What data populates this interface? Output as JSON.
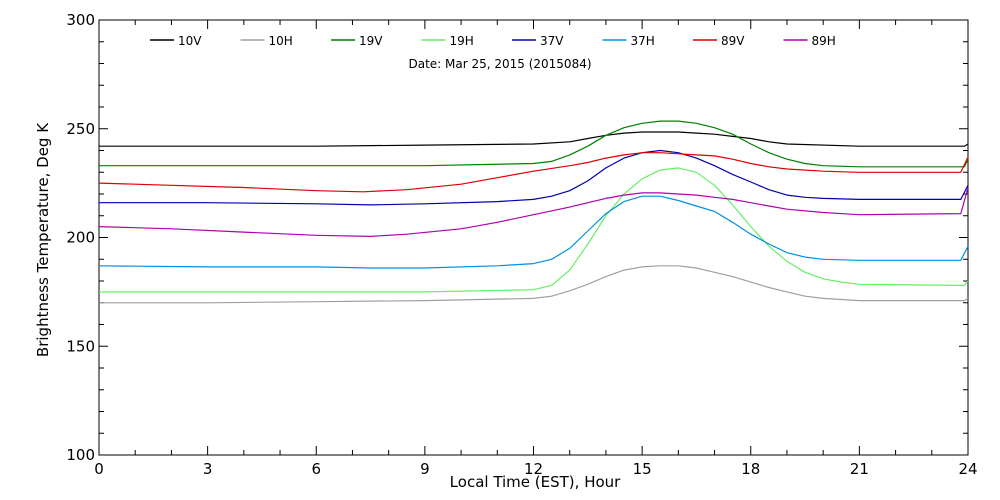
{
  "chart_data": {
    "type": "line",
    "title": "Date: Mar 25, 2015 (2015084)",
    "xlabel": "Local Time (EST), Hour",
    "ylabel": "Brightness Temperature, Deg K",
    "xlim": [
      0,
      24
    ],
    "ylim": [
      100,
      300
    ],
    "xticks": [
      0,
      3,
      6,
      9,
      12,
      15,
      18,
      21,
      24
    ],
    "yticks": [
      100,
      150,
      200,
      250,
      300
    ],
    "grid": false,
    "legend_position": "top",
    "series": [
      {
        "name": "10V",
        "color": "#000000",
        "x": [
          0,
          3,
          6,
          9,
          12,
          13,
          13.5,
          14,
          14.5,
          15,
          15.5,
          16,
          16.5,
          17,
          17.5,
          18,
          18.5,
          19,
          21,
          23.9,
          24
        ],
        "y": [
          242,
          242,
          242,
          242.5,
          243,
          244,
          245.5,
          247,
          248,
          248.5,
          248.5,
          248.5,
          248,
          247.5,
          246.5,
          245.5,
          244,
          243,
          242,
          242,
          243
        ]
      },
      {
        "name": "10H",
        "color": "#a0a0a0",
        "x": [
          0,
          3,
          6,
          9,
          12,
          12.5,
          13,
          13.5,
          14,
          14.5,
          15,
          15.5,
          16,
          16.5,
          17,
          17.5,
          18,
          18.5,
          19,
          19.5,
          20,
          21,
          23.9,
          24
        ],
        "y": [
          170,
          170,
          170.5,
          171,
          172,
          173,
          175.5,
          178.5,
          182,
          185,
          186.5,
          187,
          187,
          186,
          184,
          182,
          179.5,
          177,
          175,
          173,
          172,
          171,
          171,
          172
        ]
      },
      {
        "name": "19V",
        "color": "#008000",
        "x": [
          0,
          3,
          6,
          9,
          12,
          12.5,
          13,
          13.5,
          14,
          14.5,
          15,
          15.5,
          16,
          16.5,
          17,
          17.5,
          18,
          18.5,
          19,
          19.5,
          20,
          21,
          23.9,
          24
        ],
        "y": [
          233,
          233,
          233,
          233,
          234,
          235,
          238,
          242,
          247,
          250.5,
          252.5,
          253.5,
          253.5,
          252.5,
          250.5,
          247.5,
          243,
          239,
          236,
          234,
          233,
          232.5,
          232.5,
          236
        ]
      },
      {
        "name": "19H",
        "color": "#66ee66",
        "x": [
          0,
          3,
          6,
          9,
          12,
          12.5,
          13,
          13.5,
          14,
          14.5,
          15,
          15.5,
          16,
          16.5,
          17,
          17.5,
          18,
          18.5,
          19,
          19.5,
          20,
          20.5,
          21,
          23.9,
          24
        ],
        "y": [
          175,
          175,
          175,
          175,
          176,
          178,
          185,
          197,
          210,
          220,
          227,
          231,
          232,
          230,
          224,
          215,
          205,
          196,
          189,
          184,
          181,
          179.5,
          178.5,
          178,
          180
        ]
      },
      {
        "name": "37V",
        "color": "#0000b0",
        "x": [
          0,
          3,
          6,
          7.5,
          9,
          11,
          12,
          12.5,
          13,
          13.5,
          14,
          14.5,
          15,
          15.5,
          16,
          16.5,
          17,
          17.5,
          18,
          18.5,
          19,
          19.5,
          20,
          21,
          23.8,
          24
        ],
        "y": [
          216,
          216,
          215.5,
          215,
          215.5,
          216.5,
          217.5,
          219,
          221.5,
          226,
          232,
          236.5,
          239,
          240,
          239,
          236.5,
          233,
          229,
          225.5,
          222,
          219.5,
          218.5,
          218,
          217.5,
          217.5,
          224
        ]
      },
      {
        "name": "37H",
        "color": "#0090e0",
        "x": [
          0,
          3,
          6,
          7.5,
          9,
          11,
          12,
          12.5,
          13,
          13.5,
          14,
          14.5,
          15,
          15.5,
          16,
          16.5,
          17,
          17.5,
          18,
          18.5,
          19,
          19.5,
          20,
          21,
          23.8,
          24
        ],
        "y": [
          187,
          186.5,
          186.5,
          186,
          186,
          187,
          188,
          190,
          195,
          203,
          211,
          216.5,
          219,
          219,
          217,
          214.5,
          212,
          207,
          201.5,
          197,
          193,
          191,
          190,
          189.5,
          189.5,
          196
        ]
      },
      {
        "name": "89V",
        "color": "#e00000",
        "x": [
          0,
          2,
          4,
          6,
          7.3,
          8.5,
          10,
          11,
          12,
          13,
          13.5,
          14,
          14.5,
          15,
          15.5,
          16,
          16.5,
          17,
          17.5,
          18,
          18.5,
          19,
          20,
          21,
          23.8,
          24
        ],
        "y": [
          225,
          224,
          223,
          221.5,
          221,
          222,
          224.5,
          227.5,
          230.5,
          233,
          234.5,
          236.5,
          238,
          239,
          239,
          238.5,
          238,
          237.5,
          236,
          234,
          232.5,
          231.5,
          230.5,
          230,
          230,
          237
        ]
      },
      {
        "name": "89H",
        "color": "#b000b0",
        "x": [
          0,
          2,
          4,
          6,
          7.5,
          8.5,
          10,
          11,
          12,
          13,
          13.5,
          14,
          14.5,
          15,
          15.5,
          16,
          16.5,
          17,
          17.5,
          18,
          18.5,
          19,
          20,
          21,
          23.8,
          24
        ],
        "y": [
          205,
          204,
          202.5,
          201,
          200.5,
          201.5,
          204,
          207,
          210.5,
          214,
          216,
          218,
          219.5,
          220.5,
          220.5,
          220,
          219.5,
          218.5,
          217.5,
          216,
          214.5,
          213,
          211.5,
          210.5,
          211,
          223
        ]
      }
    ]
  }
}
